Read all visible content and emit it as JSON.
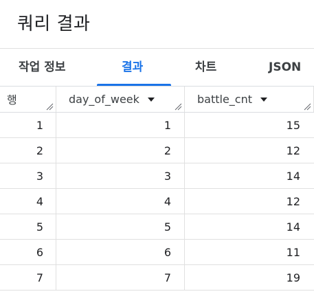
{
  "title": "쿼리 결과",
  "tabs": [
    {
      "label": "작업 정보",
      "active": false
    },
    {
      "label": "결과",
      "active": true
    },
    {
      "label": "차트",
      "active": false
    },
    {
      "label": "JSON",
      "active": false
    }
  ],
  "table": {
    "columns": [
      "행",
      "day_of_week",
      "battle_cnt"
    ],
    "rows": [
      [
        "1",
        "1",
        "15"
      ],
      [
        "2",
        "2",
        "12"
      ],
      [
        "3",
        "3",
        "14"
      ],
      [
        "4",
        "4",
        "12"
      ],
      [
        "5",
        "5",
        "14"
      ],
      [
        "6",
        "6",
        "11"
      ],
      [
        "7",
        "7",
        "19"
      ]
    ]
  },
  "colors": {
    "accent": "#1a73e8",
    "text": "#202124",
    "grid_line": "#e0e0e0"
  },
  "icons": {
    "sort": "sort-down-icon",
    "resize": "column-resize-handle-icon"
  }
}
